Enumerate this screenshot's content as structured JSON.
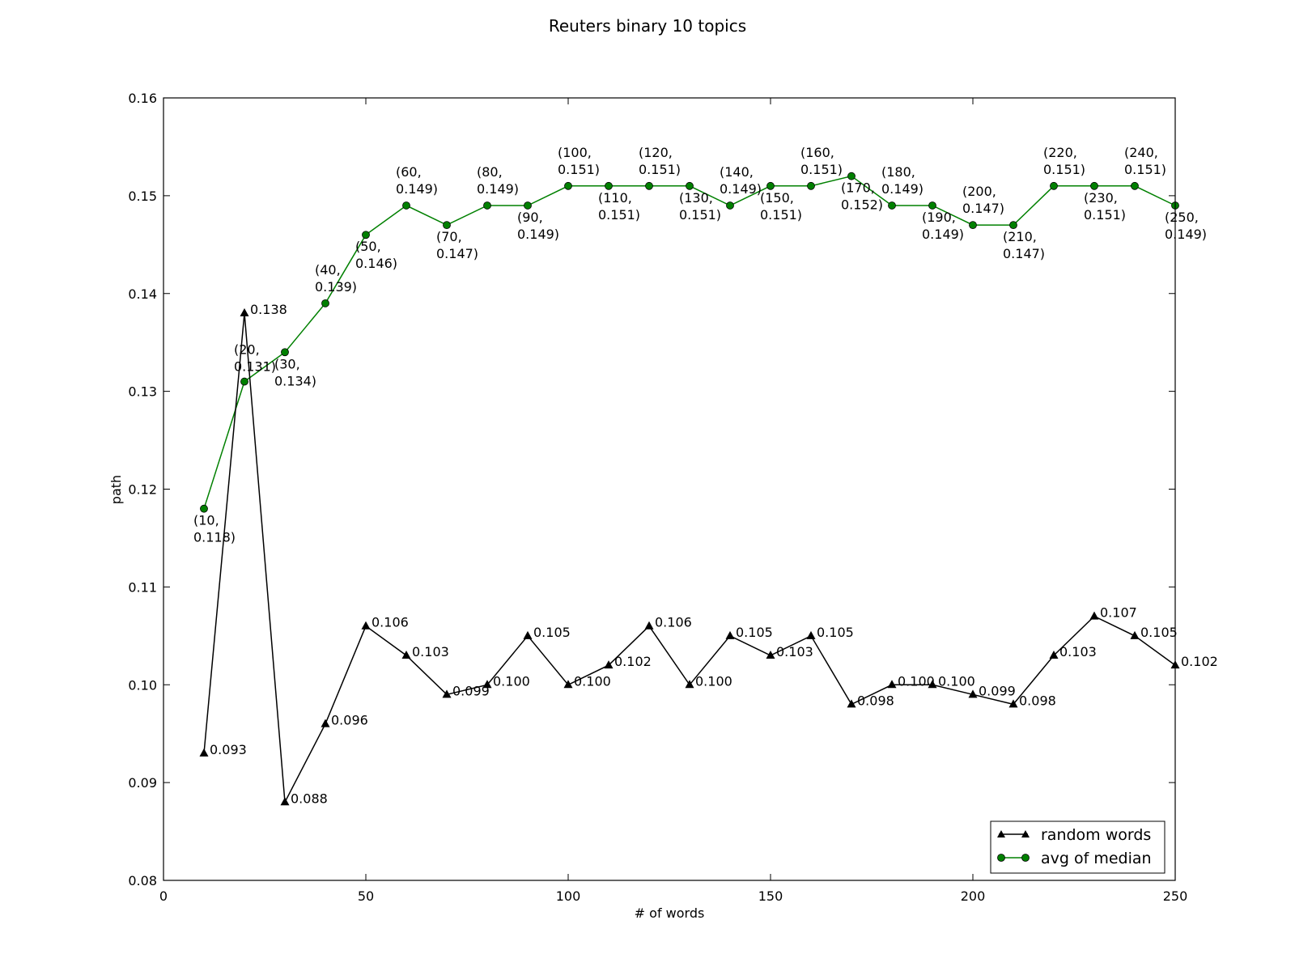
{
  "chart_data": {
    "type": "line",
    "title": "Reuters binary  10 topics",
    "xlabel": "# of words",
    "ylabel": "path",
    "xlim": [
      0,
      250
    ],
    "ylim": [
      0.08,
      0.16
    ],
    "xticks": [
      0,
      50,
      100,
      150,
      200,
      250
    ],
    "xtick_labels": [
      "0",
      "50",
      "100",
      "150",
      "200",
      "250"
    ],
    "yticks": [
      0.08,
      0.09,
      0.1,
      0.11,
      0.12,
      0.13,
      0.14,
      0.15,
      0.16
    ],
    "ytick_labels": [
      "0.08",
      "0.09",
      "0.10",
      "0.11",
      "0.12",
      "0.13",
      "0.14",
      "0.15",
      "0.16"
    ],
    "grid": false,
    "legend_position": "lower-right",
    "x": [
      10,
      20,
      30,
      40,
      50,
      60,
      70,
      80,
      90,
      100,
      110,
      120,
      130,
      140,
      150,
      160,
      170,
      180,
      190,
      200,
      210,
      220,
      230,
      240,
      250
    ],
    "series": [
      {
        "name": "random words",
        "color": "#000000",
        "marker": "triangle",
        "values": [
          0.093,
          0.138,
          0.088,
          0.096,
          0.106,
          0.103,
          0.099,
          0.1,
          0.105,
          0.1,
          0.102,
          0.106,
          0.1,
          0.105,
          0.103,
          0.105,
          0.098,
          0.1,
          0.1,
          0.099,
          0.098,
          0.103,
          0.107,
          0.105,
          0.102
        ],
        "labels": [
          "0.093",
          "0.138",
          "0.088",
          "0.096",
          "0.106",
          "0.103",
          "0.099",
          "0.100",
          "0.105",
          "0.100",
          "0.102",
          "0.106",
          "0.100",
          "0.105",
          "0.103",
          "0.105",
          "0.098",
          "0.100",
          "0.100",
          "0.099",
          "0.098",
          "0.103",
          "0.107",
          "0.105",
          "0.102"
        ]
      },
      {
        "name": "avg of median",
        "color": "#008000",
        "marker": "circle",
        "values": [
          0.118,
          0.131,
          0.134,
          0.139,
          0.146,
          0.149,
          0.147,
          0.149,
          0.149,
          0.151,
          0.151,
          0.151,
          0.151,
          0.149,
          0.151,
          0.151,
          0.152,
          0.149,
          0.149,
          0.147,
          0.147,
          0.151,
          0.151,
          0.151,
          0.149
        ],
        "labels": [
          [
            "(10,",
            "0.118)"
          ],
          [
            "(20,",
            "0.131)"
          ],
          [
            "(30,",
            "0.134)"
          ],
          [
            "(40,",
            "0.139)"
          ],
          [
            "(50,",
            "0.146)"
          ],
          [
            "(60,",
            "0.149)"
          ],
          [
            "(70,",
            "0.147)"
          ],
          [
            "(80,",
            "0.149)"
          ],
          [
            "(90,",
            "0.149)"
          ],
          [
            "(100,",
            "0.151)"
          ],
          [
            "(110,",
            "0.151)"
          ],
          [
            "(120,",
            "0.151)"
          ],
          [
            "(130,",
            "0.151)"
          ],
          [
            "(140,",
            "0.149)"
          ],
          [
            "(150,",
            "0.151)"
          ],
          [
            "(160,",
            "0.151)"
          ],
          [
            "(170,",
            "0.152)"
          ],
          [
            "(180,",
            "0.149)"
          ],
          [
            "(190,",
            "0.149)"
          ],
          [
            "(200,",
            "0.147)"
          ],
          [
            "(210,",
            "0.147)"
          ],
          [
            "(220,",
            "0.151)"
          ],
          [
            "(230,",
            "0.151)"
          ],
          [
            "(240,",
            "0.151)"
          ],
          [
            "(250,",
            "0.149)"
          ]
        ]
      }
    ]
  }
}
